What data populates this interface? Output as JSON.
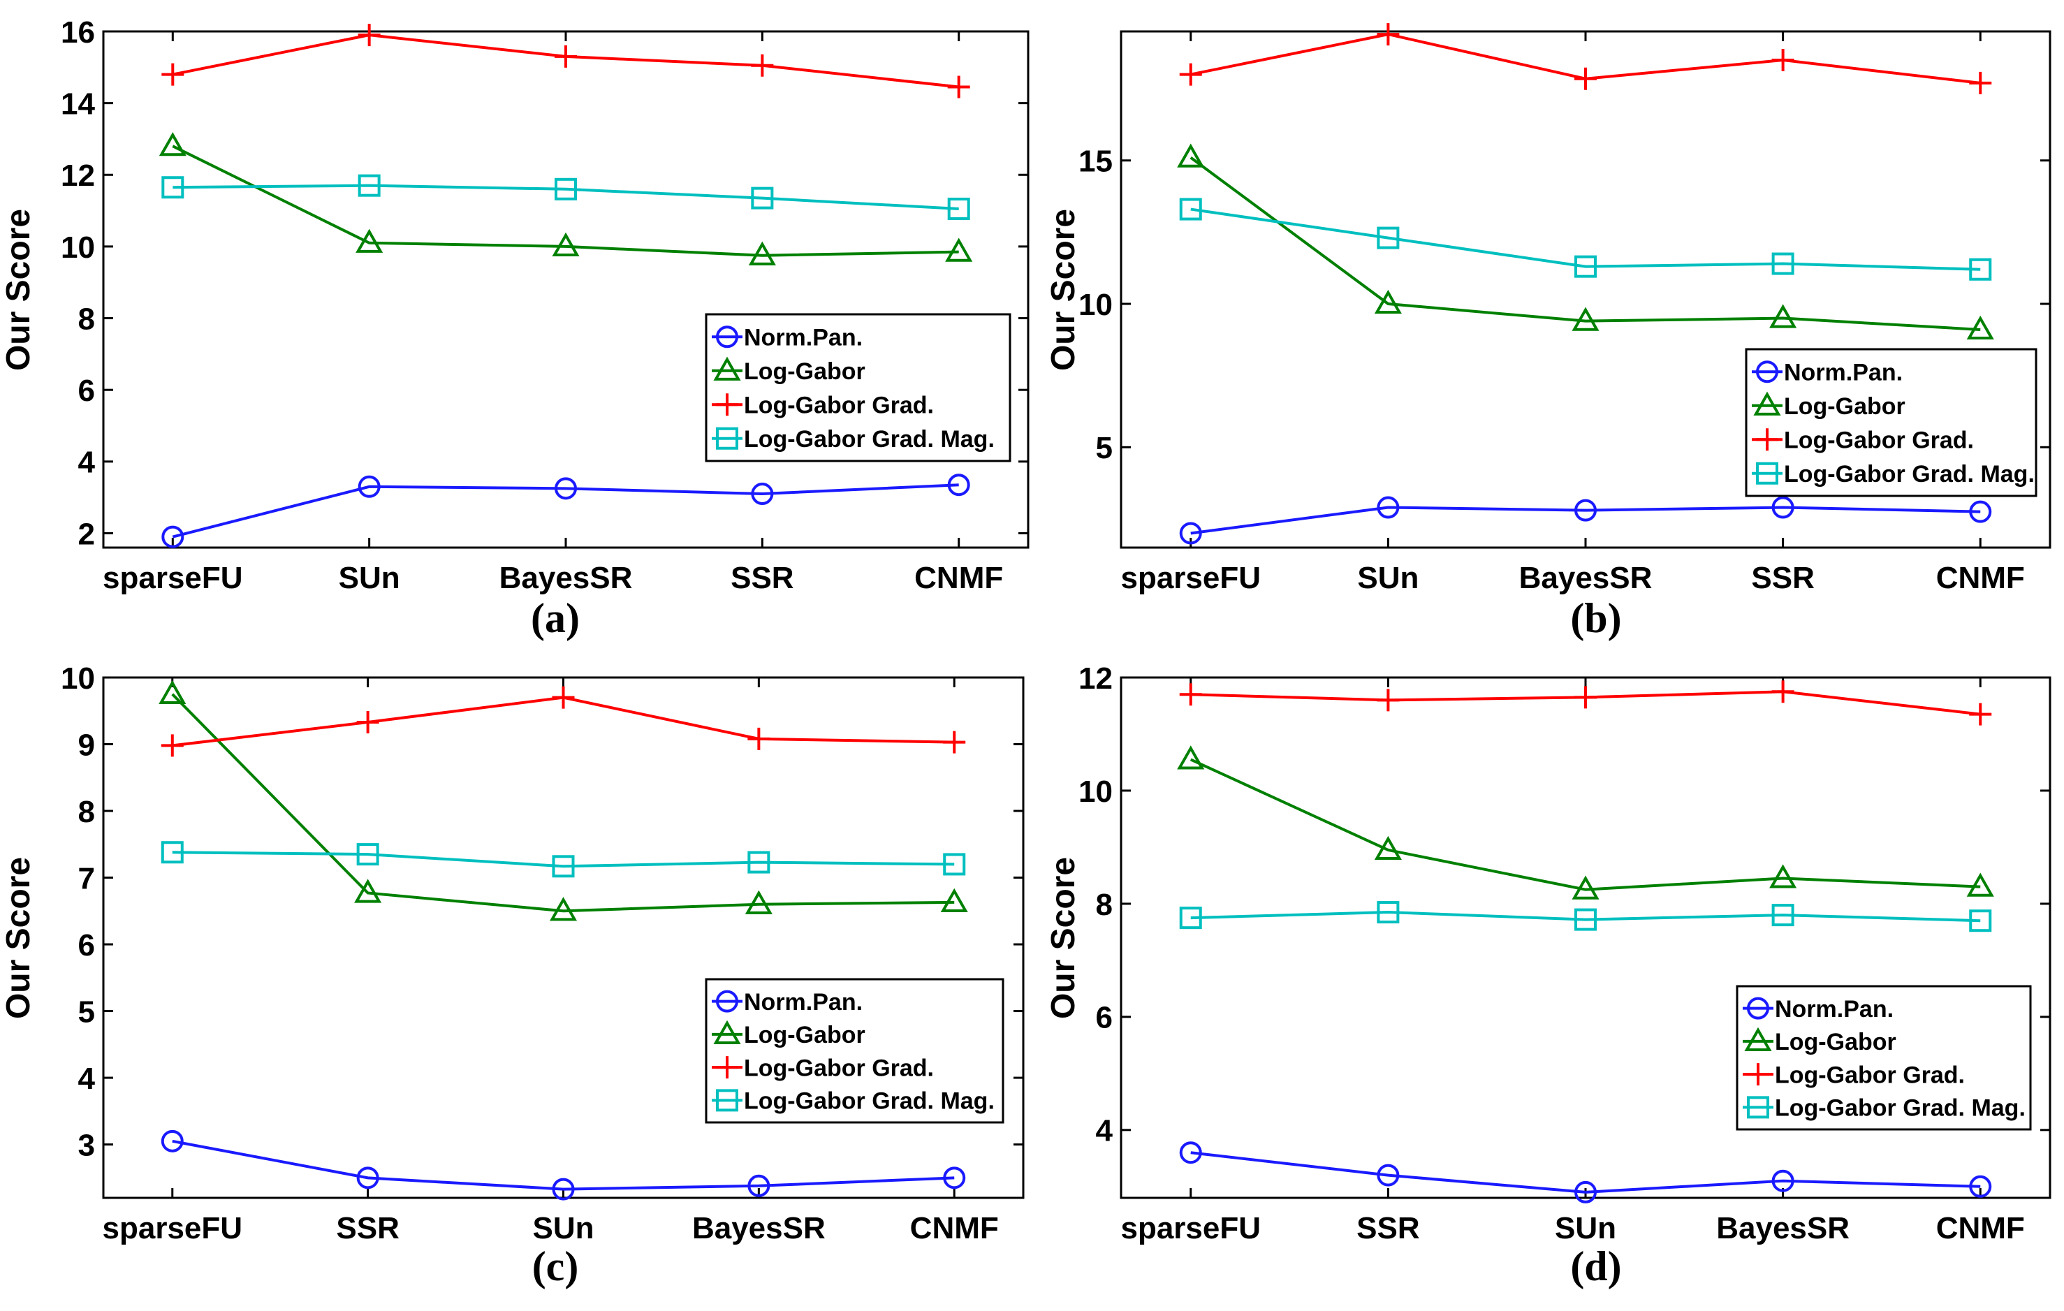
{
  "chart_data": [
    {
      "type": "line",
      "panel_label": "(a)",
      "categories": [
        "sparseFU",
        "SUn",
        "BayesSR",
        "SSR",
        "CNMF"
      ],
      "ylabel": "Our Score",
      "xlabel": "",
      "ylim": [
        1.6,
        16
      ],
      "yticks": [
        2,
        4,
        6,
        8,
        10,
        12,
        14,
        16
      ],
      "series": [
        {
          "name": "Norm.Pan.",
          "color": "#1a1aff",
          "marker": "circle",
          "values": [
            1.9,
            3.3,
            3.25,
            3.1,
            3.35
          ]
        },
        {
          "name": "Log-Gabor",
          "color": "#008000",
          "marker": "triangle",
          "values": [
            12.8,
            10.1,
            10.0,
            9.75,
            9.85
          ]
        },
        {
          "name": "Log-Gabor Grad.",
          "color": "#ff0000",
          "marker": "plus",
          "values": [
            14.8,
            15.9,
            15.3,
            15.05,
            14.45
          ]
        },
        {
          "name": "Log-Gabor Grad. Mag.",
          "color": "#00bfbf",
          "marker": "square",
          "values": [
            11.65,
            11.7,
            11.6,
            11.35,
            11.05
          ]
        }
      ],
      "legend_position": "center-right"
    },
    {
      "type": "line",
      "panel_label": "(b)",
      "categories": [
        "sparseFU",
        "SUn",
        "BayesSR",
        "SSR",
        "CNMF"
      ],
      "ylabel": "Our Score",
      "xlabel": "",
      "ylim": [
        1.5,
        19.5
      ],
      "yticks": [
        5,
        10,
        15
      ],
      "series": [
        {
          "name": "Norm.Pan.",
          "color": "#1a1aff",
          "marker": "circle",
          "values": [
            2.0,
            2.9,
            2.8,
            2.9,
            2.75
          ]
        },
        {
          "name": "Log-Gabor",
          "color": "#008000",
          "marker": "triangle",
          "values": [
            15.1,
            10.0,
            9.4,
            9.5,
            9.1
          ]
        },
        {
          "name": "Log-Gabor Grad.",
          "color": "#ff0000",
          "marker": "plus",
          "values": [
            18.0,
            19.4,
            17.85,
            18.5,
            17.7
          ]
        },
        {
          "name": "Log-Gabor Grad. Mag.",
          "color": "#00bfbf",
          "marker": "square",
          "values": [
            13.3,
            12.3,
            11.3,
            11.4,
            11.2
          ]
        }
      ],
      "legend_position": "bottom-right"
    },
    {
      "type": "line",
      "panel_label": "(c)",
      "categories": [
        "sparseFU",
        "SSR",
        "SUn",
        "BayesSR",
        "CNMF"
      ],
      "ylabel": "Our Score",
      "xlabel": "",
      "ylim": [
        2.2,
        10
      ],
      "yticks": [
        3,
        4,
        5,
        6,
        7,
        8,
        9,
        10
      ],
      "series": [
        {
          "name": "Norm.Pan.",
          "color": "#1a1aff",
          "marker": "circle",
          "values": [
            3.05,
            2.5,
            2.33,
            2.38,
            2.5
          ]
        },
        {
          "name": "Log-Gabor",
          "color": "#008000",
          "marker": "triangle",
          "values": [
            9.75,
            6.77,
            6.5,
            6.6,
            6.63
          ]
        },
        {
          "name": "Log-Gabor Grad.",
          "color": "#ff0000",
          "marker": "plus",
          "values": [
            8.98,
            9.33,
            9.7,
            9.08,
            9.03
          ]
        },
        {
          "name": "Log-Gabor Grad. Mag.",
          "color": "#00bfbf",
          "marker": "square",
          "values": [
            7.38,
            7.35,
            7.17,
            7.23,
            7.2
          ]
        }
      ],
      "legend_position": "bottom-right"
    },
    {
      "type": "line",
      "panel_label": "(d)",
      "categories": [
        "sparseFU",
        "SSR",
        "SUn",
        "BayesSR",
        "CNMF"
      ],
      "ylabel": "Our Score",
      "xlabel": "",
      "ylim": [
        2.8,
        12
      ],
      "yticks": [
        4,
        6,
        8,
        10,
        12
      ],
      "series": [
        {
          "name": "Norm.Pan.",
          "color": "#1a1aff",
          "marker": "circle",
          "values": [
            3.6,
            3.2,
            2.9,
            3.1,
            3.0
          ]
        },
        {
          "name": "Log-Gabor",
          "color": "#008000",
          "marker": "triangle",
          "values": [
            10.55,
            8.95,
            8.25,
            8.45,
            8.3
          ]
        },
        {
          "name": "Log-Gabor Grad.",
          "color": "#ff0000",
          "marker": "plus",
          "values": [
            11.7,
            11.6,
            11.65,
            11.75,
            11.35
          ]
        },
        {
          "name": "Log-Gabor Grad. Mag.",
          "color": "#00bfbf",
          "marker": "square",
          "values": [
            7.75,
            7.85,
            7.72,
            7.8,
            7.7
          ]
        }
      ],
      "legend_position": "bottom-right"
    }
  ]
}
